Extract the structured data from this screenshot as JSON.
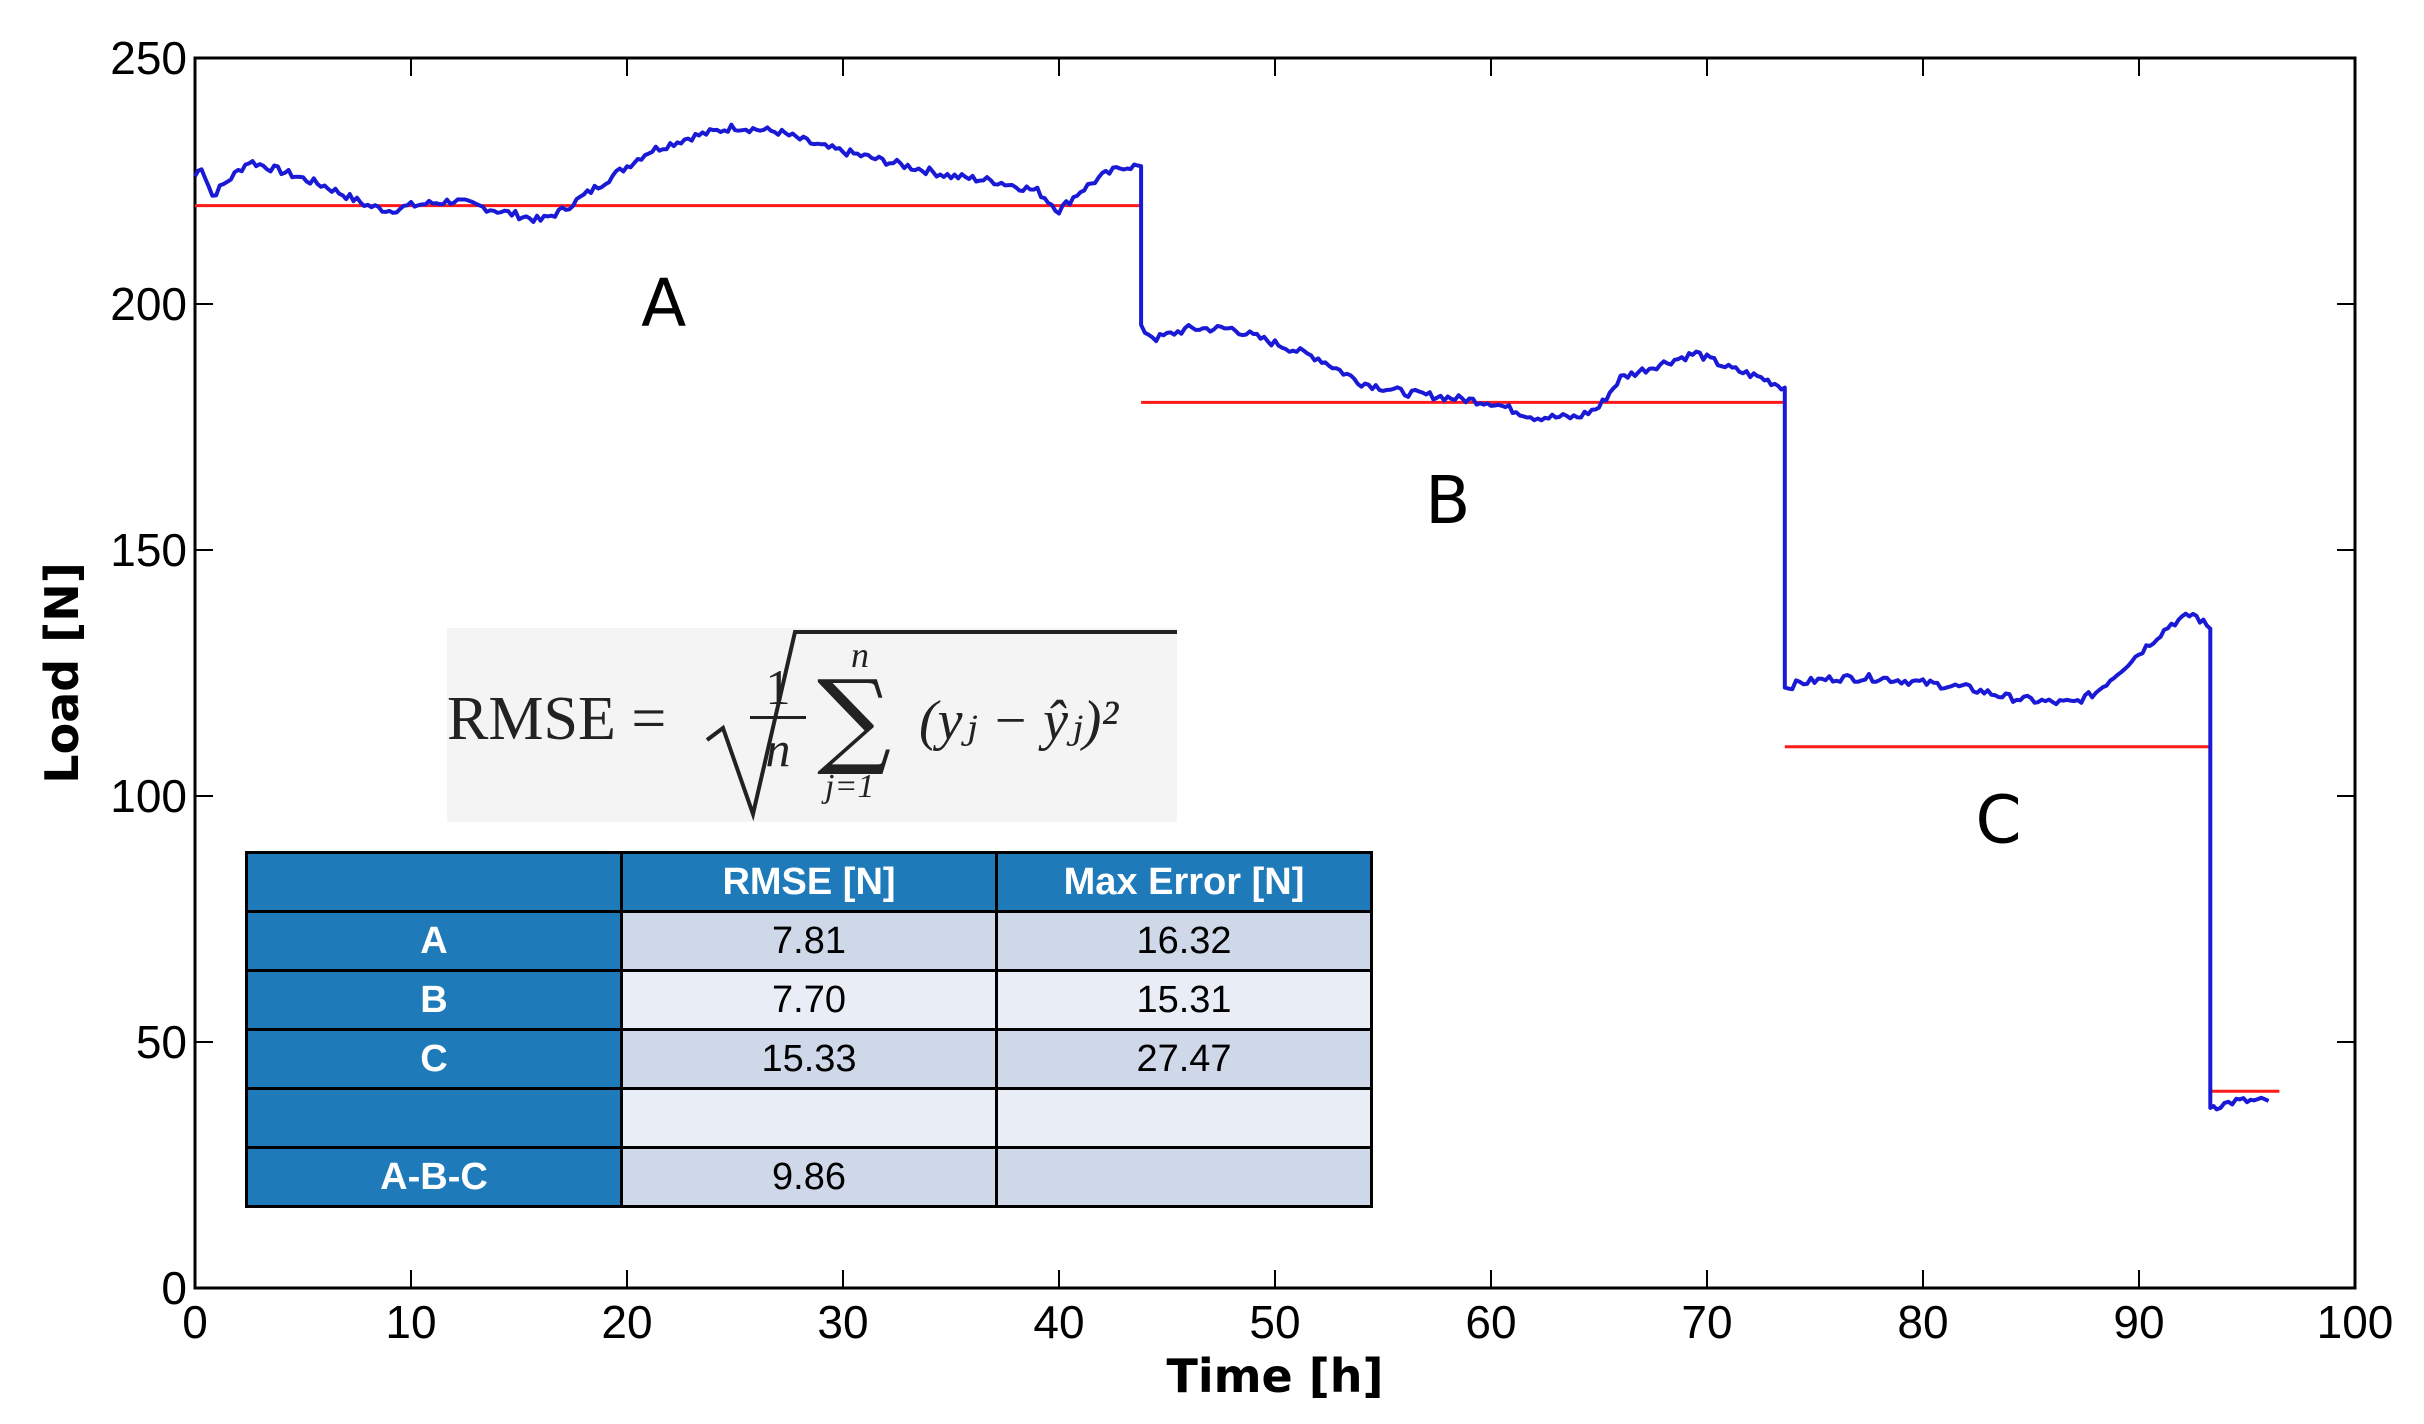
{
  "chart_data": {
    "type": "line",
    "xlabel": "Time [h]",
    "ylabel": "Load [N]",
    "xlim": [
      0,
      100
    ],
    "ylim": [
      0,
      250
    ],
    "xticks": [
      "0",
      "10",
      "20",
      "30",
      "40",
      "50",
      "60",
      "70",
      "80",
      "90",
      "100"
    ],
    "yticks": [
      "0",
      "50",
      "100",
      "150",
      "200",
      "250"
    ],
    "grid": false,
    "series": [
      {
        "name": "measured load",
        "color": "#1a1ad6",
        "x": [
          0,
          0.3,
          0.8,
          1.5,
          2,
          2.5,
          4,
          6,
          8,
          9,
          10,
          12,
          14,
          15,
          16,
          17,
          19,
          21,
          23,
          25,
          27,
          29,
          31,
          33,
          35,
          37,
          39,
          40,
          41,
          42,
          43,
          43.8,
          43.8,
          44.5,
          46,
          48,
          50,
          52,
          54,
          56,
          58,
          60,
          62,
          64,
          65,
          66,
          68,
          69.5,
          71,
          72.5,
          73.6,
          73.6,
          74.3,
          76,
          78,
          80,
          82,
          84,
          86,
          87,
          88,
          90,
          91.5,
          92.5,
          93.3,
          93.3,
          93.6,
          94.5,
          96
        ],
        "y": [
          226,
          228,
          222,
          225,
          227,
          229,
          227,
          224,
          220,
          219,
          220,
          221,
          219,
          218,
          217,
          219,
          225,
          231,
          234,
          236,
          235,
          232,
          230,
          228,
          226,
          225,
          223,
          219,
          223,
          226,
          228,
          228,
          195,
          193,
          195,
          195,
          192,
          189,
          184,
          182,
          181,
          180,
          177,
          177,
          179,
          185,
          188,
          190,
          187,
          185,
          183,
          122,
          123,
          124,
          124,
          123,
          122,
          120,
          119,
          119,
          121,
          129,
          135,
          137,
          134,
          37,
          37,
          38,
          38
        ]
      },
      {
        "name": "segment averages",
        "color": "#ff1a1a",
        "segments": [
          {
            "label": "A",
            "x_start": 0,
            "x_end": 43.8,
            "y": 220
          },
          {
            "label": "B",
            "x_start": 43.8,
            "x_end": 73.6,
            "y": 180
          },
          {
            "label": "C",
            "x_start": 73.6,
            "x_end": 93.3,
            "y": 110
          },
          {
            "label": "",
            "x_start": 93.3,
            "x_end": 96.5,
            "y": 40
          }
        ]
      }
    ],
    "annotations": [
      {
        "text": "A",
        "x": 21.7,
        "y": 200
      },
      {
        "text": "B",
        "x": 58,
        "y": 160
      },
      {
        "text": "C",
        "x": 83.5,
        "y": 95
      }
    ]
  },
  "formula": {
    "lhs": "RMSE =",
    "numerator": "1",
    "denominator": "n",
    "sum_top": "n",
    "sum_bottom": "j=1",
    "term": "(yⱼ − ŷⱼ)²"
  },
  "table": {
    "headers": [
      "",
      "RMSE [N]",
      "Max Error [N]"
    ],
    "rows": [
      {
        "label": "A",
        "rmse": "7.81",
        "max_error": "16.32"
      },
      {
        "label": "B",
        "rmse": "7.70",
        "max_error": "15.31"
      },
      {
        "label": "C",
        "rmse": "15.33",
        "max_error": "27.47"
      },
      {
        "label": "",
        "rmse": "",
        "max_error": ""
      },
      {
        "label": "A-B-C",
        "rmse": "9.86",
        "max_error": ""
      }
    ]
  }
}
